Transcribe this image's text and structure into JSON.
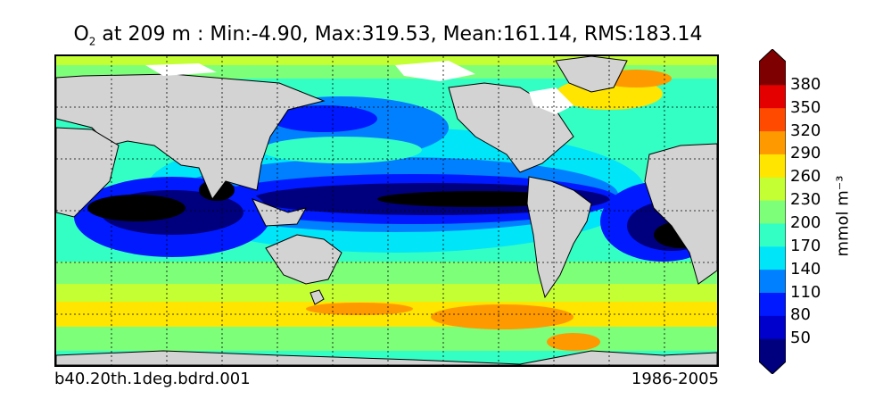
{
  "title": {
    "symbol": "O",
    "subscript": "2",
    "text": " at 209 m : Min:-4.90, Max:319.53, Mean:161.14, RMS:183.14"
  },
  "footer": {
    "run_name": "b40.20th.1deg.bdrd.001",
    "period": "1986-2005"
  },
  "colorbar": {
    "unit": "mmol m⁻³",
    "ticks": [
      "50",
      "80",
      "110",
      "140",
      "170",
      "200",
      "230",
      "260",
      "290",
      "320",
      "350",
      "380"
    ],
    "colors": [
      "#00007f",
      "#0000cc",
      "#0019ff",
      "#0080ff",
      "#00e5f8",
      "#33ffc4",
      "#7dff7a",
      "#c4ff33",
      "#ffe500",
      "#ff9900",
      "#ff4a00",
      "#e50000",
      "#7f0000"
    ]
  },
  "map": {
    "land_color": "#d3d3d3",
    "ice_color": "#ffffff",
    "anoxic_color": "#000000"
  }
}
